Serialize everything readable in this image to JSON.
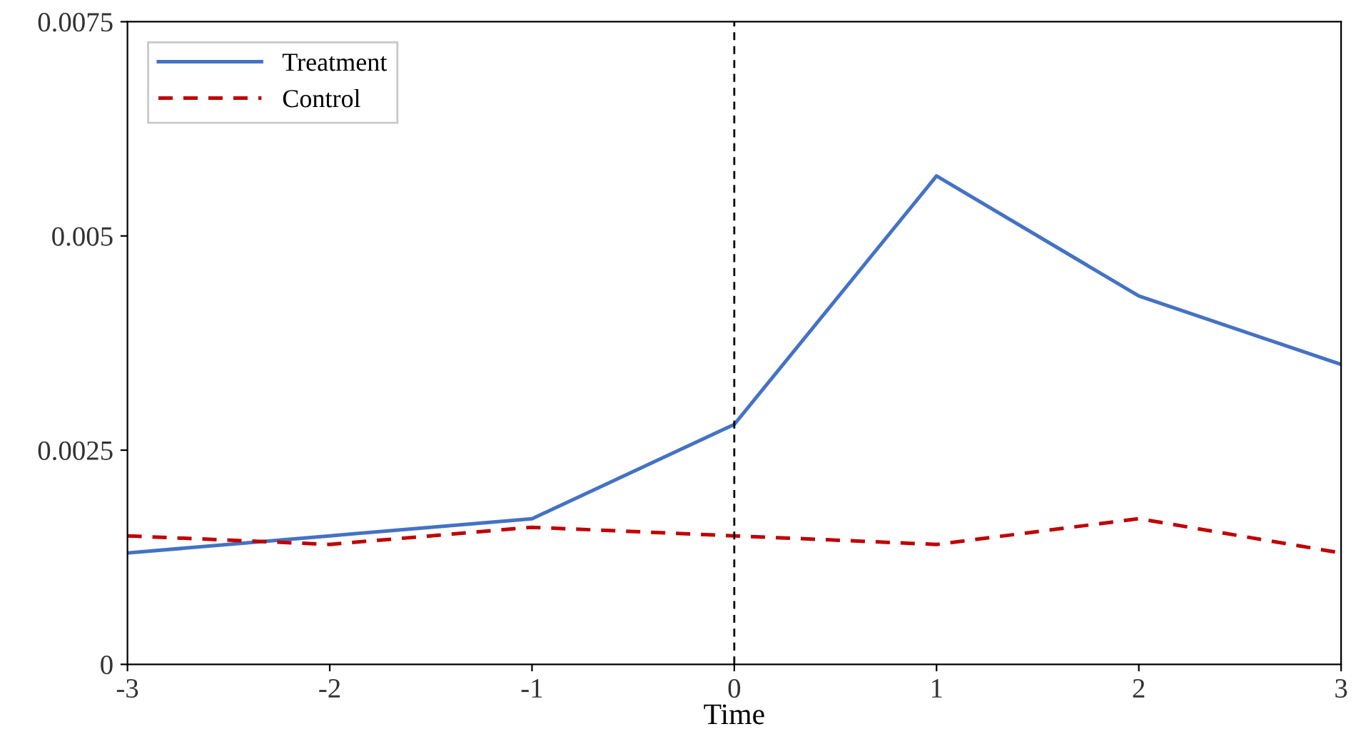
{
  "chart_data": {
    "type": "line",
    "xlabel": "Time",
    "x": [
      -3,
      -2,
      -1,
      0,
      1,
      2,
      3
    ],
    "series": [
      {
        "name": "Treatment",
        "color": "#4472c4",
        "line_style": "solid",
        "values": [
          0.0013,
          0.0015,
          0.0017,
          0.0028,
          0.0057,
          0.0043,
          0.0035
        ]
      },
      {
        "name": "Control",
        "color": "#c00000",
        "line_style": "dashed",
        "values": [
          0.0015,
          0.0014,
          0.0016,
          0.0015,
          0.0014,
          0.0017,
          0.0013
        ]
      }
    ],
    "xlim": [
      -3,
      3
    ],
    "xticks": [
      -3,
      -2,
      -1,
      0,
      1,
      2,
      3
    ],
    "ylim": [
      0,
      0.0075
    ],
    "yticks": [
      0,
      0.0025,
      0.005,
      0.0075
    ],
    "ref_lines": [
      {
        "axis": "x",
        "value": 0,
        "color": "#000000",
        "line_style": "dashed"
      }
    ],
    "grid": false,
    "legend": "top left",
    "marker": "none"
  }
}
